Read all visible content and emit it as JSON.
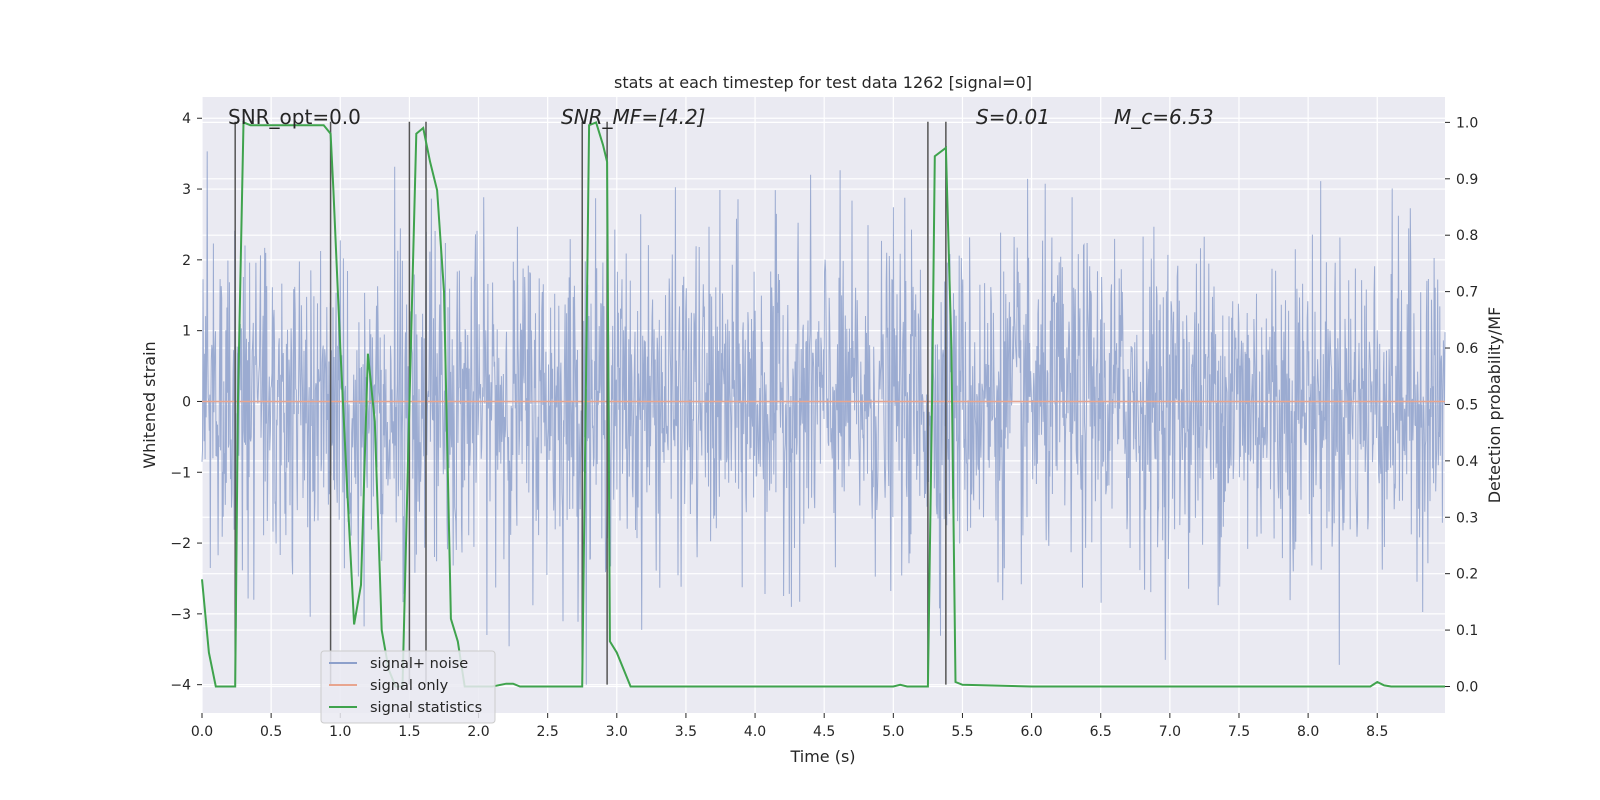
{
  "chart_data": {
    "type": "line",
    "title": "stats at each timestep for test data 1262 [signal=0]",
    "xlabel": "Time (s)",
    "ylabel": "Whitened strain",
    "y2label": "Detection probability/MF",
    "xlim": [
      0.0,
      8.99
    ],
    "ylim": [
      -4.4,
      4.3
    ],
    "y2lim": [
      -0.047,
      1.045
    ],
    "xticks": [
      0.0,
      0.5,
      1.0,
      1.5,
      2.0,
      2.5,
      3.0,
      3.5,
      4.0,
      4.5,
      5.0,
      5.5,
      6.0,
      6.5,
      7.0,
      7.5,
      8.0,
      8.5
    ],
    "xtick_labels": [
      "0.0",
      "0.5",
      "1.0",
      "1.5",
      "2.0",
      "2.5",
      "3.0",
      "3.5",
      "4.0",
      "4.5",
      "5.0",
      "5.5",
      "6.0",
      "6.5",
      "7.0",
      "7.5",
      "8.0",
      "8.5"
    ],
    "yticks": [
      4,
      3,
      2,
      1,
      0,
      -1,
      -2,
      -3,
      -4
    ],
    "ytick_labels": [
      "4",
      "3",
      "2",
      "1",
      "0",
      "−1",
      "−2",
      "−3",
      "−4"
    ],
    "y2ticks": [
      1.0,
      0.9,
      0.8,
      0.7,
      0.6,
      0.5,
      0.4,
      0.3,
      0.2,
      0.1,
      0.0
    ],
    "y2tick_labels": [
      "1.0",
      "0.9",
      "0.8",
      "0.7",
      "0.6",
      "0.5",
      "0.4",
      "0.3",
      "0.2",
      "0.1",
      "0.0"
    ],
    "grid": true,
    "legend_position": "lower-left",
    "annotations": [
      {
        "text": "SNR_opt=0.0",
        "x": 0.19
      },
      {
        "text": "SNR_MF=[4.2]",
        "x": 2.6
      },
      {
        "text": "S=0.01",
        "x": 5.6
      },
      {
        "text": "M_c=6.53",
        "x": 6.6
      }
    ],
    "series": [
      {
        "name": "signal+ noise",
        "color": "#8da0cb",
        "kind": "noise",
        "envelope_typical": 2.0,
        "peak_max": 3.8,
        "trough_min": -4.0
      },
      {
        "name": "signal only",
        "color": "#e8a58f",
        "kind": "flat",
        "value": 0.0
      },
      {
        "name": "signal statistics",
        "color": "#3fa34d",
        "axis": "right",
        "x": [
          0.0,
          0.05,
          0.1,
          0.15,
          0.2,
          0.24,
          0.26,
          0.3,
          0.35,
          0.5,
          0.7,
          0.88,
          0.93,
          0.95,
          1.0,
          1.05,
          1.1,
          1.15,
          1.2,
          1.25,
          1.3,
          1.35,
          1.4,
          1.45,
          1.5,
          1.55,
          1.6,
          1.65,
          1.7,
          1.75,
          1.8,
          1.85,
          1.9,
          1.95,
          2.0,
          2.1,
          2.2,
          2.25,
          2.3,
          2.5,
          2.7,
          2.75,
          2.78,
          2.8,
          2.85,
          2.9,
          2.93,
          2.95,
          3.0,
          3.1,
          3.5,
          4.0,
          4.5,
          5.0,
          5.05,
          5.1,
          5.2,
          5.25,
          5.28,
          5.3,
          5.38,
          5.42,
          5.45,
          5.5,
          6.0,
          7.0,
          8.0,
          8.4,
          8.45,
          8.5,
          8.55,
          8.6,
          8.99
        ],
        "values": [
          0.19,
          0.06,
          0.0,
          0.0,
          0.0,
          0.0,
          0.5,
          1.0,
          0.995,
          0.995,
          0.995,
          0.995,
          0.98,
          0.88,
          0.6,
          0.35,
          0.11,
          0.18,
          0.59,
          0.47,
          0.1,
          0.03,
          0.0,
          0.0,
          0.5,
          0.98,
          0.99,
          0.93,
          0.88,
          0.7,
          0.12,
          0.08,
          0.0,
          0.0,
          0.0,
          0.0,
          0.005,
          0.005,
          0.0,
          0.0,
          0.0,
          0.0,
          0.6,
          0.995,
          1.0,
          0.96,
          0.93,
          0.08,
          0.06,
          0.0,
          0.0,
          0.0,
          0.0,
          0.0,
          0.003,
          0.0,
          0.0,
          0.0,
          0.5,
          0.94,
          0.955,
          0.6,
          0.008,
          0.003,
          0.0,
          0.0,
          0.0,
          0.0,
          0.0,
          0.008,
          0.002,
          0.0,
          0.0
        ]
      }
    ],
    "vlines": [
      0.24,
      0.93,
      1.5,
      1.62,
      2.75,
      2.93,
      5.25,
      5.38
    ]
  }
}
